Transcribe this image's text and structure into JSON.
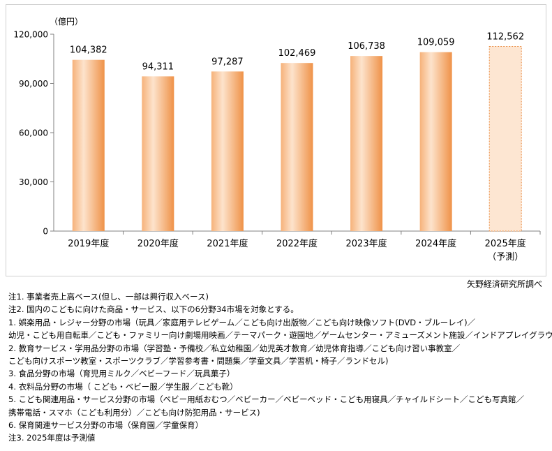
{
  "chart_data": {
    "type": "bar",
    "unit_label": "（億円）",
    "categories": [
      "2019年度",
      "2020年度",
      "2021年度",
      "2022年度",
      "2023年度",
      "2024年度",
      "2025年度"
    ],
    "category_sublabels": [
      "",
      "",
      "",
      "",
      "",
      "",
      "（予測）"
    ],
    "values": [
      104382,
      94311,
      97287,
      102469,
      106738,
      109059,
      112562
    ],
    "value_labels": [
      "104,382",
      "94,311",
      "97,287",
      "102,469",
      "106,738",
      "109,059",
      "112,562"
    ],
    "forecast": [
      false,
      false,
      false,
      false,
      false,
      false,
      true
    ],
    "ylim": [
      0,
      120000
    ],
    "yticks": [
      0,
      30000,
      60000,
      90000,
      120000
    ],
    "ytick_labels": [
      "0",
      "30,000",
      "60,000",
      "90,000",
      "120,000"
    ],
    "grid": false,
    "colors": {
      "bar_light": "#fde3cc",
      "bar_mid": "#f6b27a",
      "bar_dark": "#ef9248",
      "forecast_fill": "#fde6d2",
      "forecast_border": "#e98a3f",
      "axis": "#808080"
    }
  },
  "source": "矢野経済研究所調べ",
  "notes": [
    "注1.  事業者売上高ベース(但し、一部は興行収入ベース)",
    "注2.  国内のこどもに向けた商品・サービス、以下の6分野34市場を対象とする。",
    "1.  娯楽用品・レジャー分野の市場（玩具／家庭用テレビゲーム／こども向け出版物／こども向け映像ソフト(DVD・ブルーレイ)／",
    "  幼児・こども用自転車／こども・ファミリー向け劇場用映画／テーマパーク・遊園地／ゲームセンター・アミューズメント施設／インドアプレイグラウンド)",
    "2.  教育サービス・学用品分野の市場（学習塾・予備校／私立幼稚園／幼児英才教育／幼児体育指導／こども向け習い事教室／",
    "  こども向けスポーツ教室・スポーツクラブ／学習参考書・問題集／学童文具／学習机・椅子／ランドセル)",
    "3.  食品分野の市場（育児用ミルク／ベビーフード／玩具菓子）",
    "4.  衣料品分野の市場（ こども・ベビー服／学生服／こども靴）",
    "5.  こども関連用品・サービス分野の市場（ベビー用紙おむつ／ベビーカー／ベビーベッド・こども用寝具／チャイルドシート／こども写真館／",
    "  携帯電話・スマホ（こども利用分）／こども向け防犯用品・サービス)",
    "6.  保育関連サービス分野の市場（保育園／学童保育）",
    "注3.  2025年度は予測値"
  ]
}
